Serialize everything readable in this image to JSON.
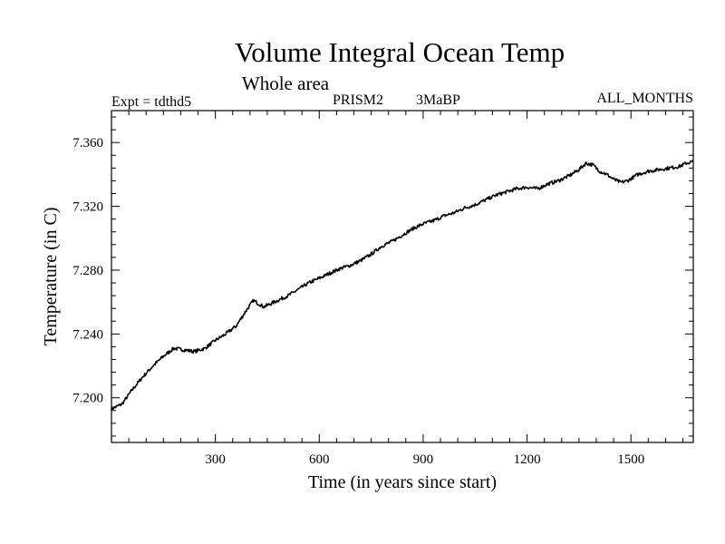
{
  "chart_data": {
    "type": "line",
    "title": "Volume Integral Ocean Temp",
    "subtitle": "Whole area",
    "header_left": "Expt = tdthd5",
    "header_center_1": "PRISM2",
    "header_center_2": "3MaBP",
    "header_right": "ALL_MONTHS",
    "xlabel": "Time (in years since start)",
    "ylabel": "Temperature (in C)",
    "xlim": [
      0,
      1680
    ],
    "ylim": [
      7.172,
      7.38
    ],
    "xticks": [
      300,
      600,
      900,
      1200,
      1500
    ],
    "xtick_labels": [
      "300",
      "600",
      "900",
      "1200",
      "1500"
    ],
    "yticks": [
      7.2,
      7.24,
      7.28,
      7.32,
      7.36
    ],
    "ytick_labels": [
      "7.200",
      "7.240",
      "7.280",
      "7.320",
      "7.360"
    ],
    "series": [
      {
        "name": "Volume integral ocean temperature",
        "x": [
          0,
          30,
          60,
          90,
          120,
          150,
          180,
          210,
          240,
          270,
          300,
          330,
          360,
          390,
          410,
          440,
          480,
          510,
          540,
          570,
          600,
          630,
          660,
          690,
          720,
          750,
          780,
          810,
          840,
          870,
          900,
          930,
          960,
          990,
          1020,
          1050,
          1080,
          1110,
          1140,
          1170,
          1200,
          1230,
          1260,
          1290,
          1320,
          1350,
          1370,
          1390,
          1410,
          1430,
          1450,
          1470,
          1490,
          1520,
          1550,
          1580,
          1610,
          1640,
          1660,
          1680
        ],
        "y": [
          7.193,
          7.196,
          7.205,
          7.213,
          7.22,
          7.226,
          7.231,
          7.23,
          7.229,
          7.231,
          7.236,
          7.24,
          7.245,
          7.255,
          7.261,
          7.257,
          7.261,
          7.264,
          7.268,
          7.272,
          7.275,
          7.278,
          7.281,
          7.283,
          7.286,
          7.29,
          7.295,
          7.298,
          7.302,
          7.306,
          7.309,
          7.311,
          7.314,
          7.316,
          7.319,
          7.321,
          7.324,
          7.327,
          7.329,
          7.331,
          7.332,
          7.331,
          7.334,
          7.336,
          7.339,
          7.343,
          7.347,
          7.346,
          7.342,
          7.34,
          7.337,
          7.335,
          7.336,
          7.34,
          7.342,
          7.343,
          7.344,
          7.345,
          7.347,
          7.348
        ]
      }
    ]
  }
}
